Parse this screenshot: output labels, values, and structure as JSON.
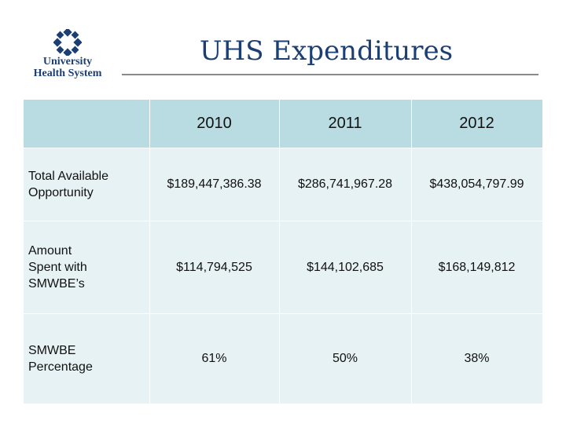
{
  "header": {
    "logo_line1": "University",
    "logo_line2": "Health System",
    "title": "UHS Expenditures"
  },
  "table": {
    "columns": [
      "",
      "2010",
      "2011",
      "2012"
    ],
    "rows": [
      {
        "label_lines": [
          "Total Available",
          "Opportunity"
        ],
        "values": [
          "$189,447,386.38",
          "$286,741,967.28",
          "$438,054,797.99"
        ]
      },
      {
        "label_lines": [
          "Amount",
          "Spent with",
          "SMWBE’s"
        ],
        "values": [
          "$114,794,525",
          "$144,102,685",
          "$168,149,812"
        ]
      },
      {
        "label_lines": [
          "SMWBE",
          "Percentage"
        ],
        "values": [
          "61%",
          "50%",
          "38%"
        ]
      }
    ]
  },
  "colors": {
    "brand_navy": "#1c3f73",
    "header_row": "#b8dce1",
    "body_rows": "#e7f2f5"
  }
}
